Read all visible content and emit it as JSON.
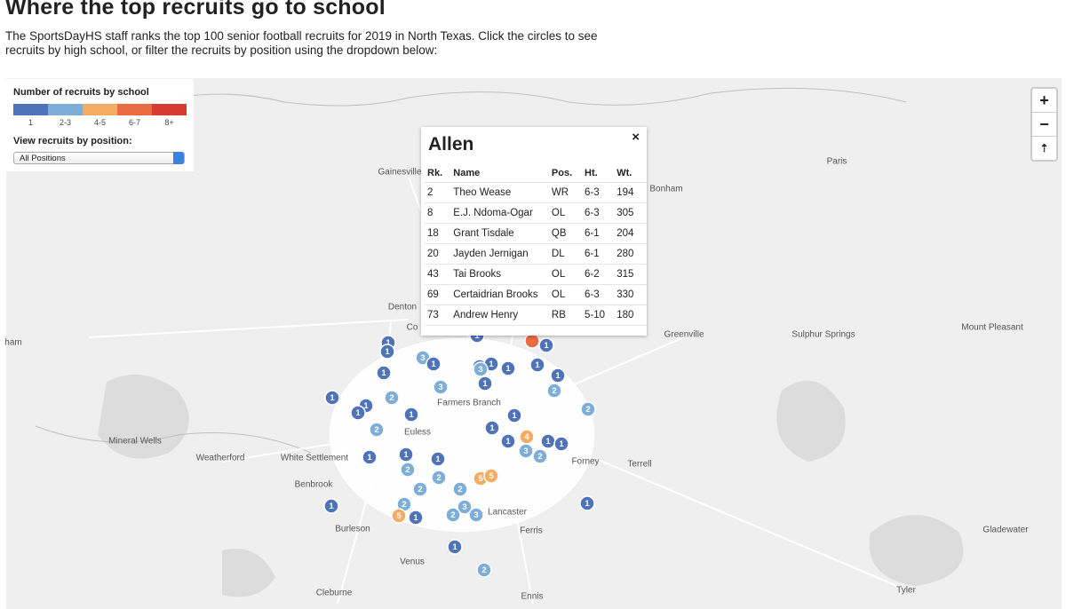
{
  "header": {
    "title": "Where the top recruits go to school",
    "description": "The SportsDayHS staff ranks the top 100 senior football recruits for 2019 in North Texas. Click the circles to see recruits by high school, or filter the recruits by position using the dropdown below:"
  },
  "legend": {
    "title": "Number of recruits by school",
    "items": [
      {
        "label": "1",
        "color": "#4e73b9"
      },
      {
        "label": "2-3",
        "color": "#7eaed8"
      },
      {
        "label": "4-5",
        "color": "#f4ac63"
      },
      {
        "label": "6-7",
        "color": "#ea6a42"
      },
      {
        "label": "8+",
        "color": "#d63b30"
      }
    ],
    "filter_label": "View recruits by position:",
    "filter_value": "All Positions"
  },
  "controls": {
    "zoom_in": "+",
    "zoom_out": "−",
    "reset": "⇡",
    "close": "×"
  },
  "places": [
    "Gainesville",
    "Bonham",
    "Paris",
    "Denton",
    "Co",
    "Greenville",
    "Sulphur Springs",
    "Mount Pleasant",
    "ham",
    "Farmers Branch",
    "Euless",
    "Mineral Wells",
    "Weatherford",
    "White Settlement",
    "Forney",
    "Terrell",
    "Benbrook",
    "Lancaster",
    "Burleson",
    "Ferris",
    "Gladewater",
    "Venus",
    "Tyler",
    "Ennis",
    "Cleburne"
  ],
  "markers": [
    1,
    1,
    1,
    1,
    3,
    1,
    1,
    1,
    3,
    1,
    1,
    1,
    1,
    1,
    3,
    2,
    1,
    2,
    1,
    1,
    1,
    2,
    1,
    2,
    1,
    4,
    1,
    1,
    1,
    1,
    1,
    3,
    2,
    1,
    2,
    5,
    5,
    2,
    2,
    2,
    1,
    1,
    2,
    3,
    5,
    1,
    2,
    3,
    1,
    2
  ],
  "popup": {
    "title": "Allen",
    "columns": [
      "Rk.",
      "Name",
      "Pos.",
      "Ht.",
      "Wt."
    ],
    "rows": [
      [
        2,
        "Theo Wease",
        "WR",
        "6-3",
        194
      ],
      [
        8,
        "E.J. Ndoma-Ogar",
        "OL",
        "6-3",
        305
      ],
      [
        18,
        "Grant Tisdale",
        "QB",
        "6-1",
        204
      ],
      [
        20,
        "Jayden Jernigan",
        "DL",
        "6-1",
        280
      ],
      [
        43,
        "Tai Brooks",
        "OL",
        "6-2",
        315
      ],
      [
        69,
        "Certaidrian Brooks",
        "OL",
        "6-3",
        330
      ],
      [
        73,
        "Andrew Henry",
        "RB",
        "5-10",
        180
      ]
    ]
  }
}
